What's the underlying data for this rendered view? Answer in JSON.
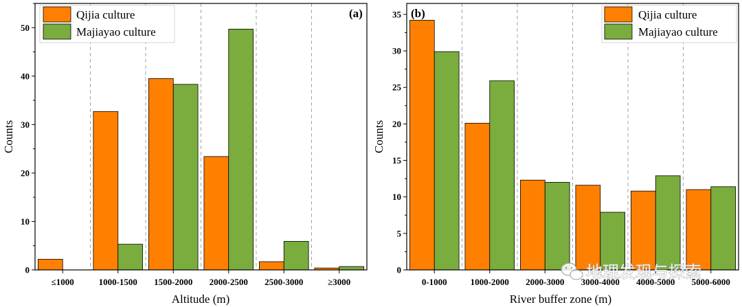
{
  "chart_data": [
    {
      "type": "bar",
      "panel_label": "(a)",
      "xlabel": "Altitude (m)",
      "ylabel": "Counts",
      "ylim": [
        0,
        55
      ],
      "yticks": [
        0,
        10,
        20,
        30,
        40,
        50
      ],
      "categories": [
        "≤1000",
        "1000-1500",
        "1500-2000",
        "2000-2500",
        "2500-3000",
        "≥3000"
      ],
      "series": [
        {
          "name": "Qijia culture",
          "color": "#ff8000",
          "values": [
            2.2,
            32.7,
            39.5,
            23.4,
            1.7,
            0.4
          ]
        },
        {
          "name": "Majiayao culture",
          "color": "#7aad3e",
          "values": [
            0,
            5.3,
            38.3,
            49.7,
            5.9,
            0.7
          ]
        }
      ],
      "legend_position": "top-left",
      "category_separators": "dashed vertical lines"
    },
    {
      "type": "bar",
      "panel_label": "(b)",
      "xlabel": "River buffer zone (m)",
      "ylabel": "Counts",
      "ylim": [
        0,
        36.5
      ],
      "yticks": [
        0,
        5,
        10,
        15,
        20,
        25,
        30,
        35
      ],
      "categories": [
        "0-1000",
        "1000-2000",
        "2000-3000",
        "3000-4000",
        "4000-5000",
        "5000-6000"
      ],
      "series": [
        {
          "name": "Qijia culture",
          "color": "#ff8000",
          "values": [
            34.2,
            20.1,
            12.3,
            11.6,
            10.8,
            11.0
          ]
        },
        {
          "name": "Majiayao culture",
          "color": "#7aad3e",
          "values": [
            29.9,
            25.9,
            12.0,
            7.9,
            12.9,
            11.4
          ]
        }
      ],
      "legend_position": "top-right",
      "category_separators": "dashed vertical lines"
    }
  ],
  "watermark": {
    "text": "地理发现与探索",
    "icon": "wechat-icon"
  }
}
